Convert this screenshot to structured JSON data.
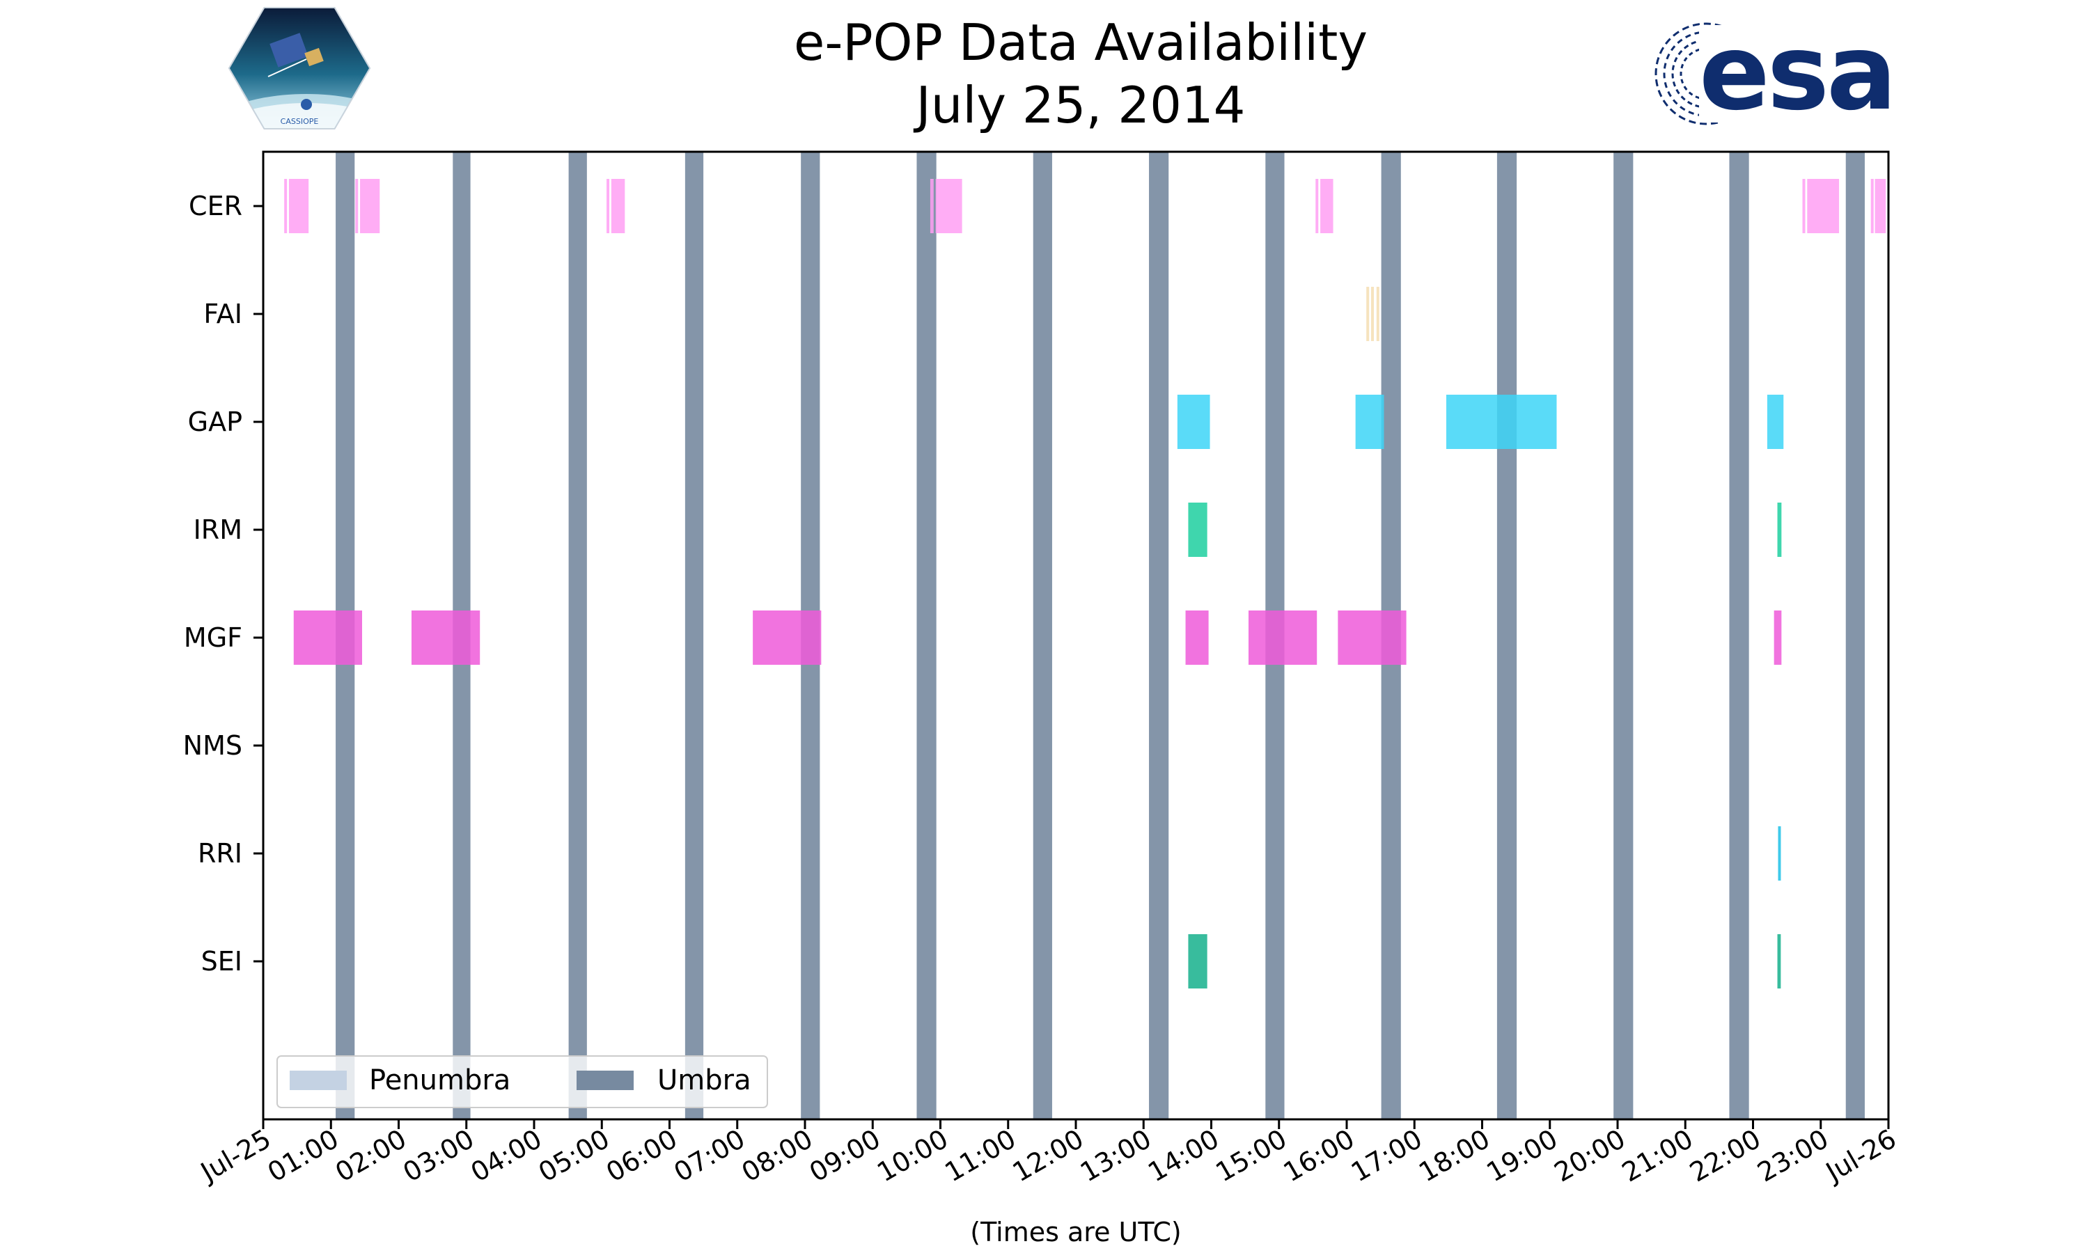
{
  "chart_data": {
    "type": "timeline",
    "title": "e-POP Data Availability",
    "subtitle": "July 25, 2014",
    "xlabel": "(Times are UTC)",
    "x_tick_labels": [
      "Jul-25",
      "01:00",
      "02:00",
      "03:00",
      "04:00",
      "05:00",
      "06:00",
      "07:00",
      "08:00",
      "09:00",
      "10:00",
      "11:00",
      "12:00",
      "13:00",
      "14:00",
      "15:00",
      "16:00",
      "17:00",
      "18:00",
      "19:00",
      "20:00",
      "21:00",
      "22:00",
      "23:00",
      "Jul-26"
    ],
    "xlim_hours": [
      0,
      24
    ],
    "instruments": [
      "CER",
      "FAI",
      "GAP",
      "IRM",
      "MGF",
      "NMS",
      "RRI",
      "SEI"
    ],
    "legend": {
      "placement": "lower-left",
      "entries": [
        {
          "name": "Penumbra",
          "color": "#c4d2e3"
        },
        {
          "name": "Umbra",
          "color": "#778aa0"
        }
      ]
    },
    "umbra_intervals_hours": [
      [
        1.07,
        1.35
      ],
      [
        2.8,
        3.06
      ],
      [
        4.51,
        4.78
      ],
      [
        6.23,
        6.5
      ],
      [
        7.94,
        8.22
      ],
      [
        9.65,
        9.94
      ],
      [
        11.37,
        11.65
      ],
      [
        13.08,
        13.37
      ],
      [
        14.8,
        15.08
      ],
      [
        16.51,
        16.8
      ],
      [
        18.22,
        18.51
      ],
      [
        19.94,
        20.23
      ],
      [
        21.65,
        21.94
      ],
      [
        23.37,
        23.65
      ]
    ],
    "series": [
      {
        "name": "CER",
        "color": "#ff9ff3",
        "intervals_hours": [
          [
            0.31,
            0.34
          ],
          [
            0.38,
            0.67
          ],
          [
            1.36,
            1.39
          ],
          [
            1.43,
            1.72
          ],
          [
            5.07,
            5.1
          ],
          [
            5.14,
            5.34
          ],
          [
            9.85,
            9.9
          ],
          [
            9.93,
            10.32
          ],
          [
            15.54,
            15.58
          ],
          [
            15.61,
            15.8
          ],
          [
            22.73,
            22.77
          ],
          [
            22.8,
            23.27
          ],
          [
            23.74,
            23.78
          ],
          [
            23.8,
            23.96
          ]
        ]
      },
      {
        "name": "FAI",
        "color": "#f5deb3",
        "intervals_hours": [
          [
            16.29,
            16.32
          ],
          [
            16.36,
            16.4
          ],
          [
            16.44,
            16.47
          ]
        ]
      },
      {
        "name": "GAP",
        "color": "#3dd5f7",
        "intervals_hours": [
          [
            13.5,
            13.98
          ],
          [
            16.13,
            16.55
          ],
          [
            17.47,
            19.1
          ],
          [
            22.21,
            22.45
          ]
        ]
      },
      {
        "name": "IRM",
        "color": "#1dcf9f",
        "intervals_hours": [
          [
            13.66,
            13.94
          ],
          [
            22.36,
            22.42
          ]
        ]
      },
      {
        "name": "MGF",
        "color": "#ee5ad9",
        "intervals_hours": [
          [
            0.45,
            1.46
          ],
          [
            2.19,
            3.2
          ],
          [
            7.23,
            8.24
          ],
          [
            13.62,
            13.96
          ],
          [
            14.55,
            15.56
          ],
          [
            15.87,
            16.88
          ],
          [
            22.31,
            22.42
          ]
        ]
      },
      {
        "name": "NMS",
        "color": "#cccccc",
        "intervals_hours": []
      },
      {
        "name": "RRI",
        "color": "#1dc1e8",
        "intervals_hours": [
          [
            22.37,
            22.4
          ]
        ]
      },
      {
        "name": "SEI",
        "color": "#15b08c",
        "intervals_hours": [
          [
            13.66,
            13.94
          ],
          [
            22.36,
            22.41
          ]
        ]
      }
    ]
  },
  "logos": {
    "left_logo_text": "CASSIOPE",
    "right_logo_text": "esa",
    "esa_color": "#0f2d6e"
  }
}
